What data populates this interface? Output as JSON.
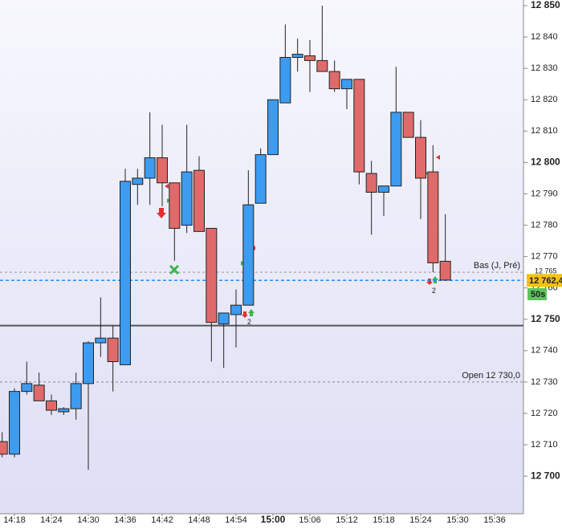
{
  "chart_data": {
    "type": "candlestick",
    "x": [
      "14:16",
      "14:18",
      "14:20",
      "14:22",
      "14:24",
      "14:26",
      "14:28",
      "14:30",
      "14:32",
      "14:34",
      "14:36",
      "14:38",
      "14:40",
      "14:42",
      "14:44",
      "14:46",
      "14:48",
      "14:50",
      "14:52",
      "14:54",
      "14:56",
      "14:58",
      "15:00",
      "15:02",
      "15:04",
      "15:06",
      "15:08",
      "15:10",
      "15:12",
      "15:14",
      "15:16",
      "15:18",
      "15:20",
      "15:22",
      "15:24",
      "15:26",
      "15:28"
    ],
    "open": [
      12711,
      12707,
      12727,
      12729,
      12724,
      12720.5,
      12721.5,
      12729.5,
      12742.5,
      12744,
      12735.5,
      12793,
      12795,
      12801.5,
      12793.5,
      12780,
      12797.5,
      12779,
      12748.5,
      12751.5,
      12754.5,
      12787,
      12802.5,
      12819,
      12833.5,
      12834,
      12832.5,
      12829,
      12823.5,
      12826.5,
      12796.5,
      12790.5,
      12792.5,
      12816,
      12808,
      12797,
      12768.5
    ],
    "high": [
      12714,
      12728,
      12736.5,
      12733,
      12726,
      12722,
      12733,
      12743,
      12757,
      12748,
      12798,
      12798,
      12816,
      12812,
      12793.5,
      12812,
      12802,
      12779,
      12752,
      12759.5,
      12797.5,
      12804.5,
      12820,
      12844,
      12839.5,
      12839,
      12850,
      12832.5,
      12826.5,
      12826.5,
      12800.5,
      12792.5,
      12830.5,
      12816,
      12813.5,
      12805.5,
      12783.5
    ],
    "low": [
      12706,
      12706,
      12726,
      12724,
      12719.5,
      12719.5,
      12718,
      12702,
      12738,
      12727,
      12735.5,
      12786.5,
      12786.5,
      12786,
      12768.6,
      12777.5,
      12778,
      12736.5,
      12734.5,
      12741,
      12754.5,
      12787,
      12802.5,
      12819,
      12829,
      12822.5,
      12829,
      12822.5,
      12817,
      12793,
      12777,
      12783,
      12792.5,
      12808,
      12782,
      12765,
      12762.5
    ],
    "close": [
      12707,
      12727,
      12729.5,
      12724,
      12721,
      12721.5,
      12729.5,
      12742.5,
      12744,
      12736.5,
      12794,
      12795,
      12801.5,
      12793.5,
      12779,
      12797,
      12778,
      12749,
      12752,
      12754.5,
      12786.5,
      12802.5,
      12820,
      12833.5,
      12834.5,
      12832.5,
      12829,
      12823.5,
      12826.5,
      12797,
      12790.5,
      12792.5,
      12816,
      12808,
      12795,
      12768,
      12762.5
    ],
    "up_color": "#3d9bf0",
    "down_color": "#e06a6a",
    "ylim": [
      12688,
      12851.8
    ],
    "yticks": [
      {
        "value": 12700,
        "label": "12 700"
      },
      {
        "value": 12710,
        "label": "12 710"
      },
      {
        "value": 12720,
        "label": "12 720"
      },
      {
        "value": 12730,
        "label": "12 730"
      },
      {
        "value": 12740,
        "label": "12 740"
      },
      {
        "value": 12750,
        "label": "12 750"
      },
      {
        "value": 12760,
        "label": "12 760"
      },
      {
        "value": 12770,
        "label": "12 770"
      },
      {
        "value": 12780,
        "label": "12 780"
      },
      {
        "value": 12790,
        "label": "12 790"
      },
      {
        "value": 12800,
        "label": "12 800"
      },
      {
        "value": 12810,
        "label": "12 810"
      },
      {
        "value": 12820,
        "label": "12 820"
      },
      {
        "value": 12830,
        "label": "12 830"
      },
      {
        "value": 12840,
        "label": "12 840"
      },
      {
        "value": 12850,
        "label": "12 850"
      }
    ],
    "xticks": [
      "14:18",
      "14:24",
      "14:30",
      "14:36",
      "14:42",
      "14:48",
      "14:54",
      "15:00",
      "15:06",
      "15:12",
      "15:18",
      "15:24",
      "15:30",
      "15:36"
    ],
    "levels": [
      {
        "value": 12765,
        "label": "Bas (J, Pré)",
        "price_label": "12 765",
        "color": "#999999",
        "style": "dashed"
      },
      {
        "value": 12762.4,
        "price_label": "12 762,4",
        "color": "#1e8fff",
        "style": "dashed"
      },
      {
        "value": 12748,
        "color": "#555555",
        "style": "solid"
      },
      {
        "value": 12730,
        "label": "Open 12 730,0",
        "color": "#888888",
        "style": "dashed"
      }
    ],
    "countdown": "50s",
    "markers": [
      {
        "x": "14:56",
        "price": 12749,
        "label": "2"
      },
      {
        "x": "15:26",
        "price": 12759,
        "label": "2"
      }
    ]
  }
}
